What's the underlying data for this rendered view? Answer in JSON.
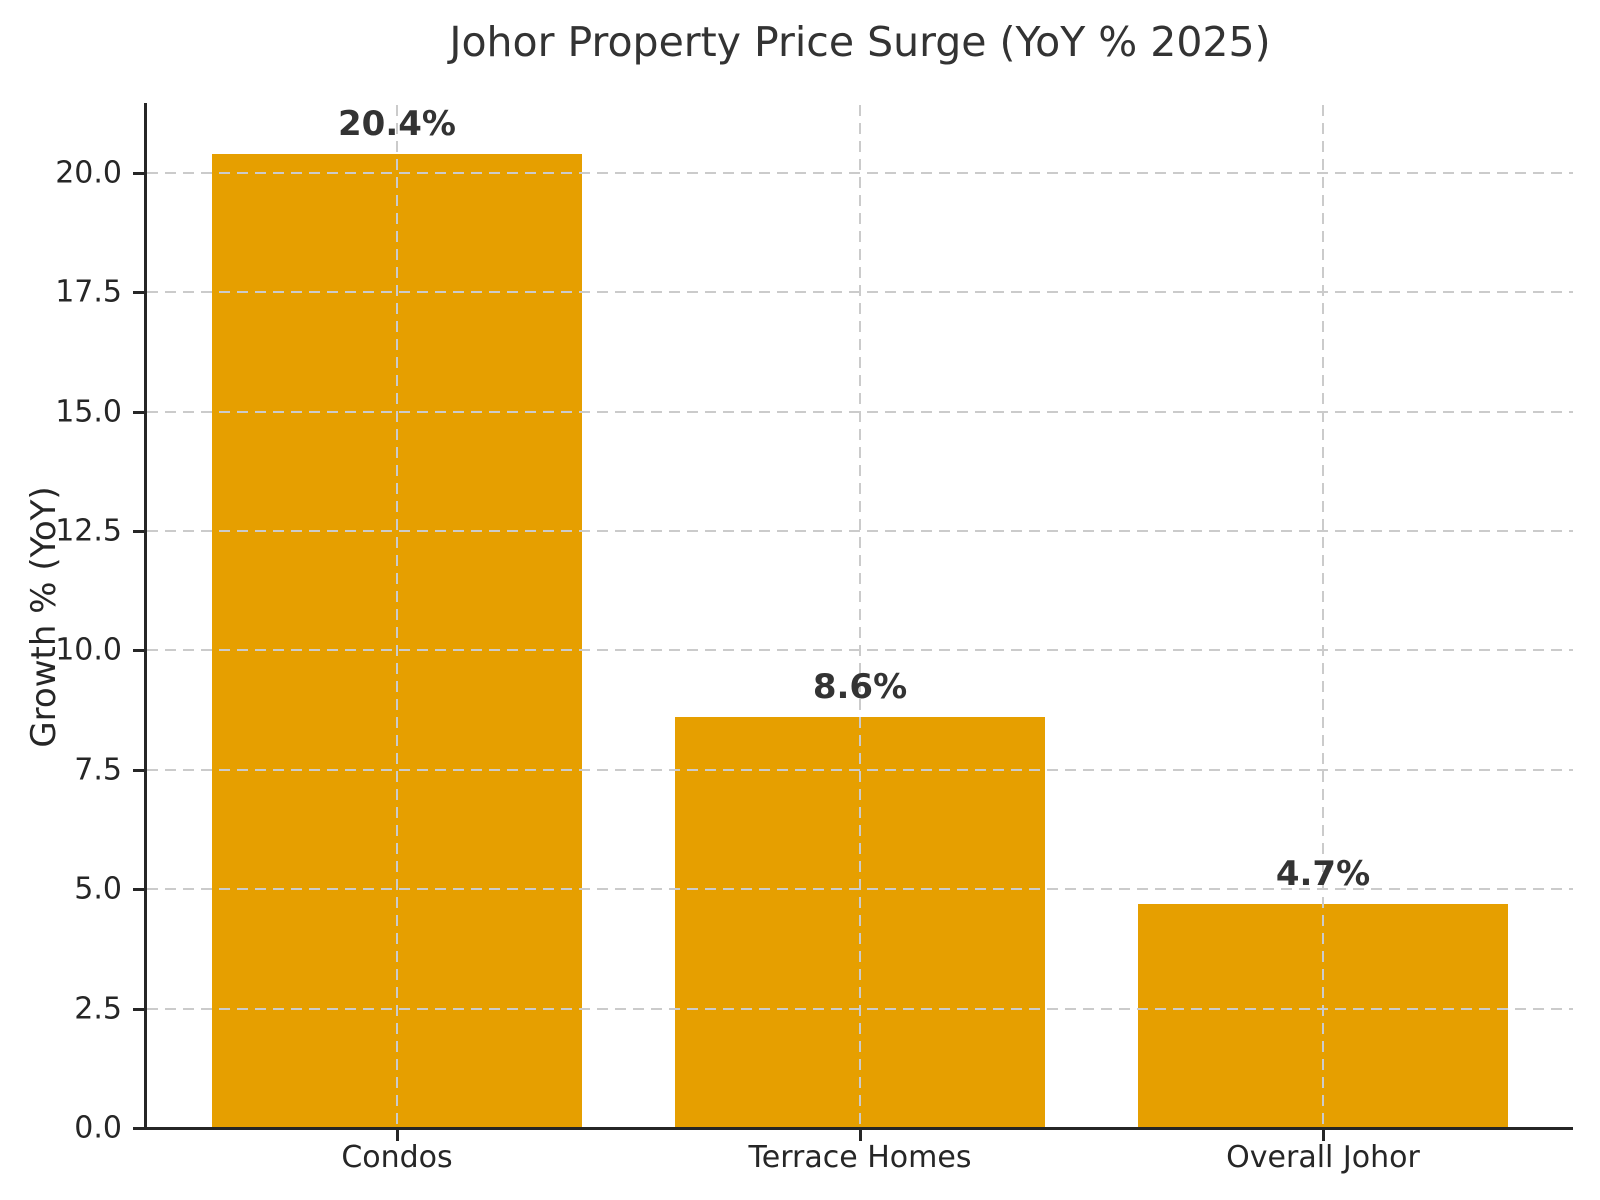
{
  "title": "Johor Property Price Surge (YoY % 2025)",
  "chart_data": {
    "type": "bar",
    "title": "Johor Property Price Surge (YoY % 2025)",
    "categories": [
      "Condos",
      "Terrace Homes",
      "Overall Johor"
    ],
    "values": [
      20.4,
      8.6,
      4.7
    ],
    "bar_labels": [
      "20.4%",
      "8.6%",
      "4.7%"
    ],
    "xlabel": "",
    "ylabel": "Growth % (YoY)",
    "ylim": [
      0,
      21.42
    ],
    "xlim": [
      -0.54,
      2.54
    ],
    "bar_width_units": 0.8,
    "ytick_labels": [
      "0.0",
      "2.5",
      "5.0",
      "7.5",
      "10.0",
      "12.5",
      "15.0",
      "17.5",
      "20.0"
    ],
    "yticks": [
      0.0,
      2.5,
      5.0,
      7.5,
      10.0,
      12.5,
      15.0,
      17.5,
      20.0
    ],
    "grid": {
      "horizontal": true,
      "vertical": true,
      "style": "dashed",
      "above_bars": true
    },
    "legend_position": "none",
    "colors": {
      "bar": "#E69F00",
      "grid": "#cbcbcb",
      "title_text": "#333333",
      "value_label_text": "#333333",
      "tick_text": "#262626",
      "axis": "#262626",
      "background": "#ffffff"
    }
  }
}
